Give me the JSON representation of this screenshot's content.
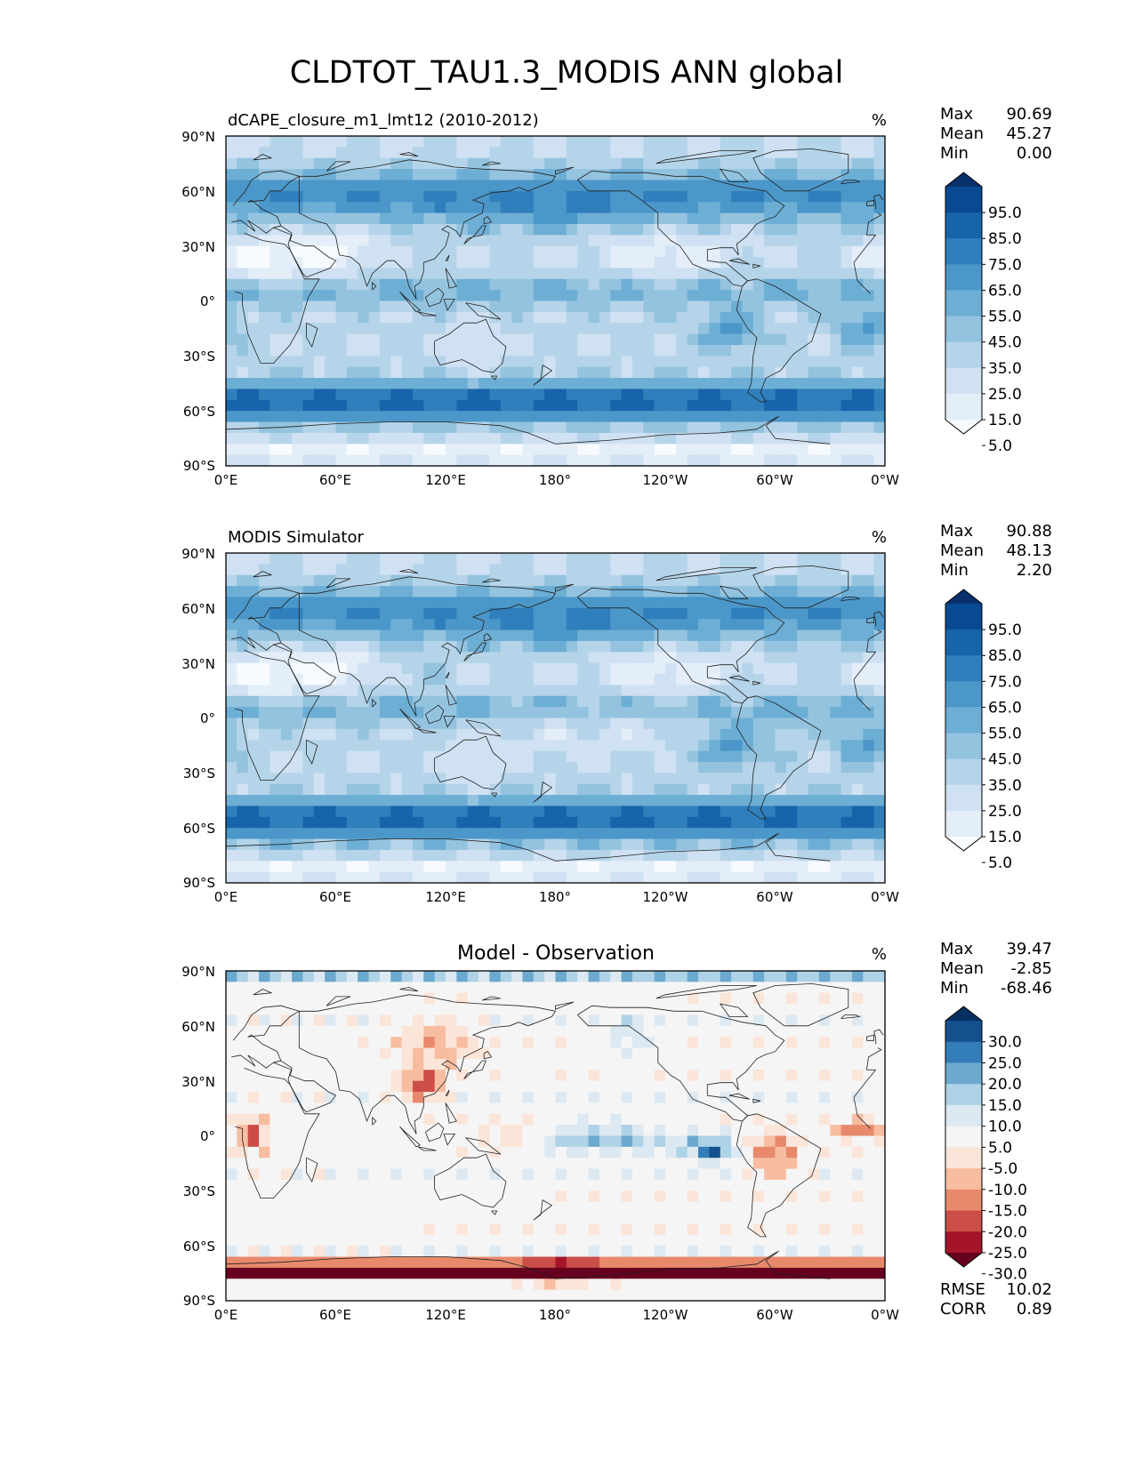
{
  "title": "CLDTOT_TAU1.3_MODIS ANN global",
  "x_ticks": [
    "0°E",
    "60°E",
    "120°E",
    "180°",
    "120°W",
    "60°W",
    "0°W"
  ],
  "y_ticks": [
    "90°N",
    "60°N",
    "30°N",
    "0°",
    "30°S",
    "60°S",
    "90°S"
  ],
  "stat_labels": {
    "max": "Max",
    "mean": "Mean",
    "min": "Min",
    "rmse": "RMSE",
    "corr": "CORR"
  },
  "panels": [
    {
      "name": "test",
      "title_left": "dCAPE_closure_m1_lmt12 (2010-2012)",
      "title_center": "",
      "units": "%",
      "stats": {
        "max": "90.69",
        "mean": "45.27",
        "min": "0.00"
      },
      "colorbar": {
        "labels": [
          "95.0",
          "85.0",
          "75.0",
          "65.0",
          "55.0",
          "45.0",
          "35.0",
          "25.0",
          "15.0",
          "5.0"
        ],
        "colors": [
          "#f7fbff",
          "#e3eef9",
          "#cfe1f2",
          "#b5d4e9",
          "#93c3df",
          "#6daed5",
          "#4b97c9",
          "#2f7fbc",
          "#1764ab",
          "#084a91",
          "#08306b"
        ]
      }
    },
    {
      "name": "reference",
      "title_left": "MODIS Simulator",
      "title_center": "",
      "units": "%",
      "stats": {
        "max": "90.88",
        "mean": "48.13",
        "min": "2.20"
      },
      "colorbar": {
        "labels": [
          "95.0",
          "85.0",
          "75.0",
          "65.0",
          "55.0",
          "45.0",
          "35.0",
          "25.0",
          "15.0",
          "5.0"
        ],
        "colors": [
          "#f7fbff",
          "#e3eef9",
          "#cfe1f2",
          "#b5d4e9",
          "#93c3df",
          "#6daed5",
          "#4b97c9",
          "#2f7fbc",
          "#1764ab",
          "#084a91",
          "#08306b"
        ]
      }
    },
    {
      "name": "difference",
      "title_left": "",
      "title_center": "Model - Observation",
      "units": "%",
      "stats": {
        "max": "39.47",
        "mean": "-2.85",
        "min": "-68.46",
        "rmse": "10.02",
        "corr": "0.89"
      },
      "colorbar": {
        "labels": [
          "30.0",
          "25.0",
          "20.0",
          "15.0",
          "10.0",
          "5.0",
          "-5.0",
          "-10.0",
          "-15.0",
          "-20.0",
          "-25.0",
          "-30.0"
        ],
        "colors": [
          "#67001f",
          "#a51429",
          "#cb4d48",
          "#e8896c",
          "#f8bda0",
          "#fbe5d8",
          "#f5f5f5",
          "#dce9f2",
          "#aed2e6",
          "#6ba9cf",
          "#337eb8",
          "#14508e",
          "#053061"
        ]
      }
    }
  ],
  "map_colors": {
    "land_outline": "#222222",
    "seq": [
      "#f7fbff",
      "#deebf7",
      "#c6dbef",
      "#9ecae1",
      "#6baed6",
      "#4292c6",
      "#2171b5",
      "#08519c",
      "#08306b"
    ],
    "div": [
      "#67001f",
      "#b2182b",
      "#d6604d",
      "#f4a582",
      "#fddbc7",
      "#f5f5f5",
      "#d1e5f0",
      "#92c5de",
      "#4393c3",
      "#2166ac",
      "#053061"
    ]
  }
}
